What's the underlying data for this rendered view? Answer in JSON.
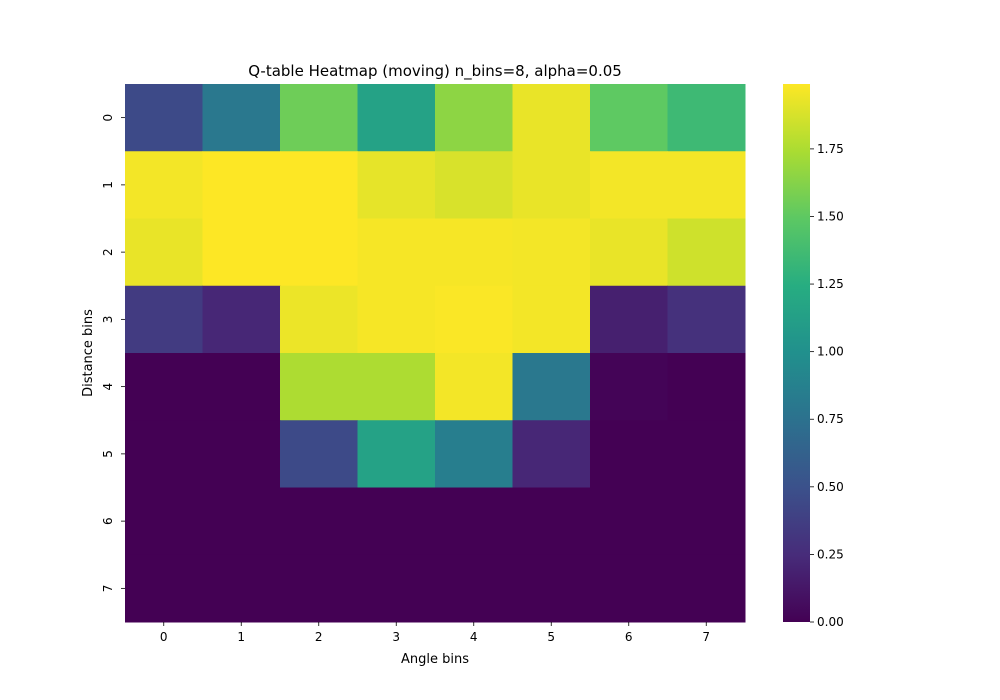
{
  "chart_data": {
    "type": "heatmap",
    "title": "Q-table Heatmap (moving) n_bins=8, alpha=0.05",
    "xlabel": "Angle bins",
    "ylabel": "Distance bins",
    "x_categories": [
      "0",
      "1",
      "2",
      "3",
      "4",
      "5",
      "6",
      "7"
    ],
    "y_categories": [
      "0",
      "1",
      "2",
      "3",
      "4",
      "5",
      "6",
      "7"
    ],
    "values": [
      [
        0.45,
        0.8,
        1.55,
        1.15,
        1.65,
        1.93,
        1.5,
        1.35
      ],
      [
        1.96,
        1.99,
        1.99,
        1.92,
        1.88,
        1.93,
        1.96,
        1.96
      ],
      [
        1.93,
        1.99,
        1.99,
        1.97,
        1.97,
        1.96,
        1.93,
        1.85
      ],
      [
        0.35,
        0.22,
        1.94,
        1.97,
        1.98,
        1.96,
        0.18,
        0.28
      ],
      [
        0.0,
        0.0,
        1.75,
        1.75,
        1.96,
        0.8,
        0.02,
        0.0
      ],
      [
        0.0,
        0.0,
        0.45,
        1.15,
        0.85,
        0.22,
        0.0,
        0.0
      ],
      [
        0.0,
        0.0,
        0.0,
        0.0,
        0.0,
        0.0,
        0.0,
        0.0
      ],
      [
        0.0,
        0.0,
        0.0,
        0.0,
        0.0,
        0.0,
        0.0,
        0.0
      ]
    ],
    "colormap": "viridis",
    "vmin": 0,
    "vmax": 1.99,
    "colorbar_ticks": [
      "0.00",
      "0.25",
      "0.50",
      "0.75",
      "1.00",
      "1.25",
      "1.50",
      "1.75"
    ],
    "grid": false,
    "legend": "colorbar-right"
  }
}
